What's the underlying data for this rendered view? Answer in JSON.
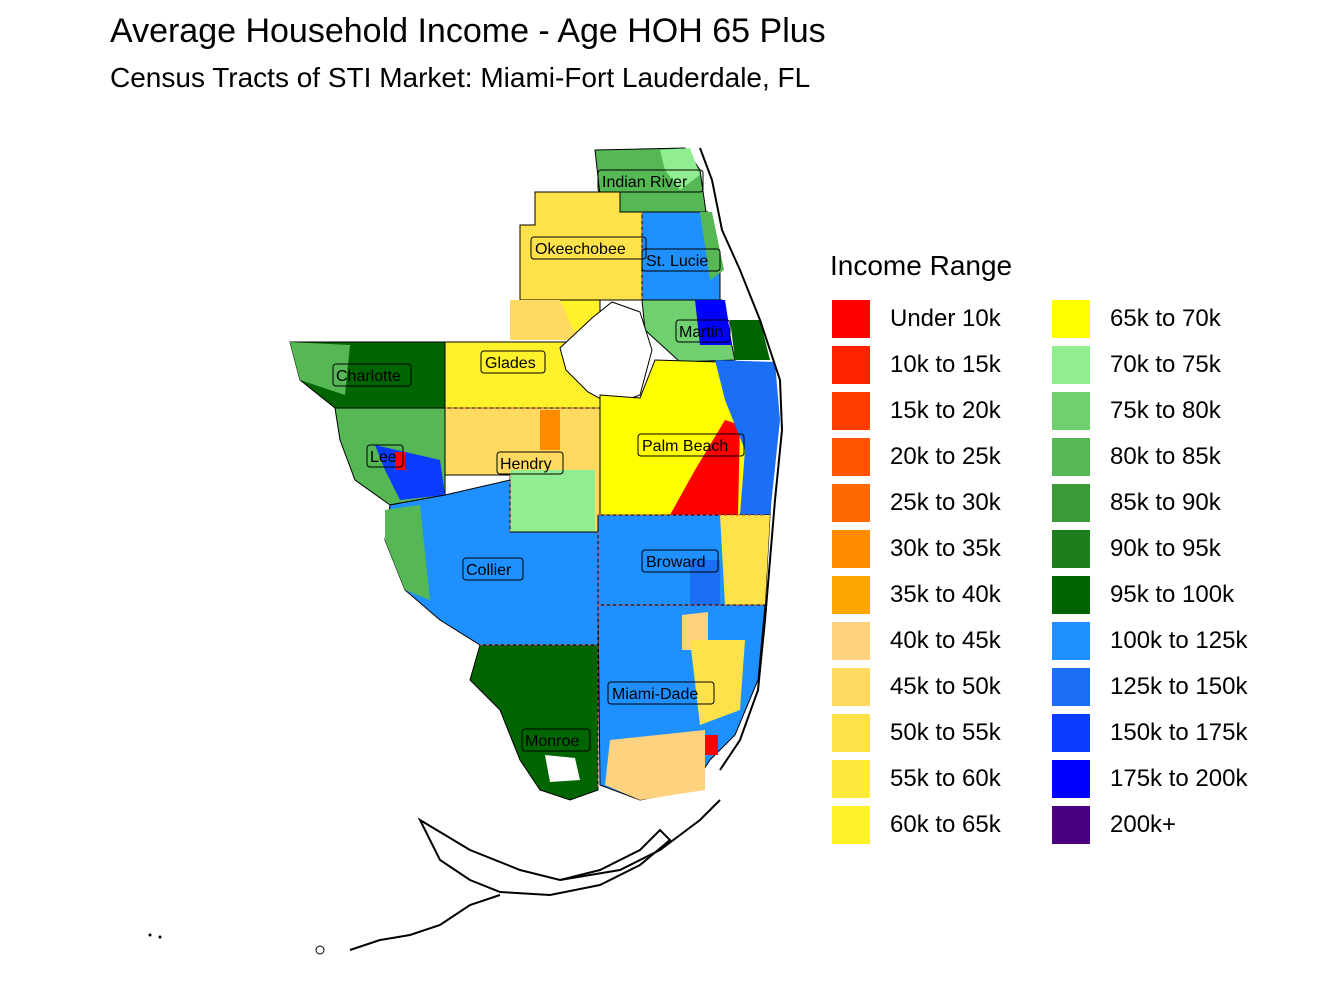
{
  "title": "Average Household Income - Age HOH 65 Plus",
  "subtitle": "Census Tracts of STI Market: Miami-Fort Lauderdale, FL",
  "legend": {
    "title": "Income Range",
    "items": [
      {
        "label": "Under 10k",
        "color": "#FF0000"
      },
      {
        "label": "10k to 15k",
        "color": "#FF2200"
      },
      {
        "label": "15k to 20k",
        "color": "#FF3D00"
      },
      {
        "label": "20k to 25k",
        "color": "#FF5500"
      },
      {
        "label": "25k to 30k",
        "color": "#FF6A00"
      },
      {
        "label": "30k to 35k",
        "color": "#FF8C00"
      },
      {
        "label": "35k to 40k",
        "color": "#FFA500"
      },
      {
        "label": "40k to 45k",
        "color": "#FFD27F"
      },
      {
        "label": "45k to 50k",
        "color": "#FFDA60"
      },
      {
        "label": "50k to 55k",
        "color": "#FFE24A"
      },
      {
        "label": "55k to 60k",
        "color": "#FFE93A"
      },
      {
        "label": "60k to 65k",
        "color": "#FFF22A"
      },
      {
        "label": "65k to 70k",
        "color": "#FFFF00"
      },
      {
        "label": "70k to 75k",
        "color": "#90EE90"
      },
      {
        "label": "75k to 80k",
        "color": "#70D070"
      },
      {
        "label": "80k to 85k",
        "color": "#55B855"
      },
      {
        "label": "85k to 90k",
        "color": "#3A9A3A"
      },
      {
        "label": "90k to 95k",
        "color": "#1E7E1E"
      },
      {
        "label": "95k to 100k",
        "color": "#006400"
      },
      {
        "label": "100k to 125k",
        "color": "#1E90FF"
      },
      {
        "label": "125k to 150k",
        "color": "#1A6FF5"
      },
      {
        "label": "150k to 175k",
        "color": "#0A3CFF"
      },
      {
        "label": "175k to 200k",
        "color": "#0000FF"
      },
      {
        "label": "200k+",
        "color": "#4B0082"
      }
    ]
  },
  "counties": [
    {
      "name": "Indian River"
    },
    {
      "name": "Okeechobee"
    },
    {
      "name": "St. Lucie"
    },
    {
      "name": "Martin"
    },
    {
      "name": "Glades"
    },
    {
      "name": "Charlotte"
    },
    {
      "name": "Palm Beach"
    },
    {
      "name": "Lee"
    },
    {
      "name": "Hendry"
    },
    {
      "name": "Collier"
    },
    {
      "name": "Broward"
    },
    {
      "name": "Miami-Dade"
    },
    {
      "name": "Monroe"
    }
  ]
}
